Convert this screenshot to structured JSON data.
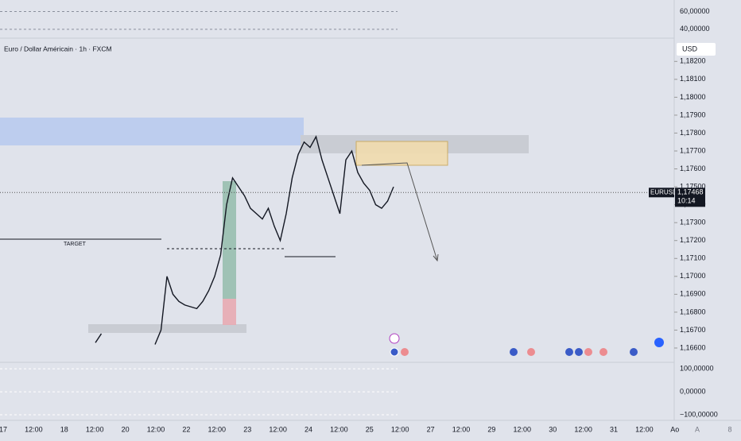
{
  "chart_data": {
    "type": "line",
    "title": "Euro / Dollar Américain · 1h · FXCM",
    "currency": "USD",
    "symbol": "EURUSD",
    "last_price": {
      "value": 1.17468,
      "label": "1,17468"
    },
    "countdown": "10:14",
    "annotation": "TARGET",
    "series": [
      {
        "name": "EURUSD",
        "color": "#131722",
        "values": [
          1.1663,
          1.1668,
          null,
          null,
          null,
          null,
          null,
          null,
          null,
          null,
          1.1662,
          1.167,
          1.17,
          1.169,
          1.1686,
          1.1684,
          1.1683,
          1.1682,
          1.1686,
          1.1692,
          1.17,
          1.1712,
          1.174,
          1.1755,
          1.175,
          1.1745,
          1.1738,
          1.1735,
          1.1732,
          1.1738,
          1.1728,
          1.172,
          1.1735,
          1.1755,
          1.1768,
          1.1775,
          1.1772,
          1.1778,
          1.1765,
          1.1755,
          1.1745,
          1.1735,
          1.1765,
          1.177,
          1.1758,
          1.1752,
          1.1748,
          1.174,
          1.1738,
          1.1742,
          1.175
        ]
      }
    ],
    "ylim": [
      1.1652,
      1.1833
    ],
    "yticks": [
      {
        "value": 1.182,
        "label": "1,18200"
      },
      {
        "value": 1.181,
        "label": "1,18100"
      },
      {
        "value": 1.18,
        "label": "1,18000"
      },
      {
        "value": 1.179,
        "label": "1,17900"
      },
      {
        "value": 1.178,
        "label": "1,17800"
      },
      {
        "value": 1.177,
        "label": "1,17700"
      },
      {
        "value": 1.176,
        "label": "1,17600"
      },
      {
        "value": 1.175,
        "label": "1,17500"
      },
      {
        "value": 1.174,
        "label": "1,17400"
      },
      {
        "value": 1.173,
        "label": "1,17300"
      },
      {
        "value": 1.172,
        "label": "1,17200"
      },
      {
        "value": 1.171,
        "label": "1,17100"
      },
      {
        "value": 1.17,
        "label": "1,17000"
      },
      {
        "value": 1.169,
        "label": "1,16900"
      },
      {
        "value": 1.168,
        "label": "1,16800"
      },
      {
        "value": 1.167,
        "label": "1,16700"
      },
      {
        "value": 1.166,
        "label": "1,16600"
      }
    ],
    "top_pane": {
      "ylim": [
        30,
        73
      ],
      "yticks": [
        {
          "value": 60,
          "label": "60,00000"
        },
        {
          "value": 40,
          "label": "40,00000"
        }
      ]
    },
    "bottom_pane": {
      "ylim": [
        -124,
        128
      ],
      "yticks": [
        {
          "value": 100,
          "label": "100,00000"
        },
        {
          "value": 0,
          "label": "0,00000"
        },
        {
          "value": -100,
          "label": "−100,00000"
        }
      ]
    },
    "time_labels": [
      "17",
      "12:00",
      "18",
      "12:00",
      "20",
      "12:00",
      "22",
      "12:00",
      "23",
      "12:00",
      "24",
      "12:00",
      "25",
      "12:00",
      "27",
      "12:00",
      "29",
      "12:00",
      "30",
      "12:00",
      "31",
      "12:00",
      "Ao"
    ],
    "toolbar": [
      "A",
      "8"
    ]
  }
}
